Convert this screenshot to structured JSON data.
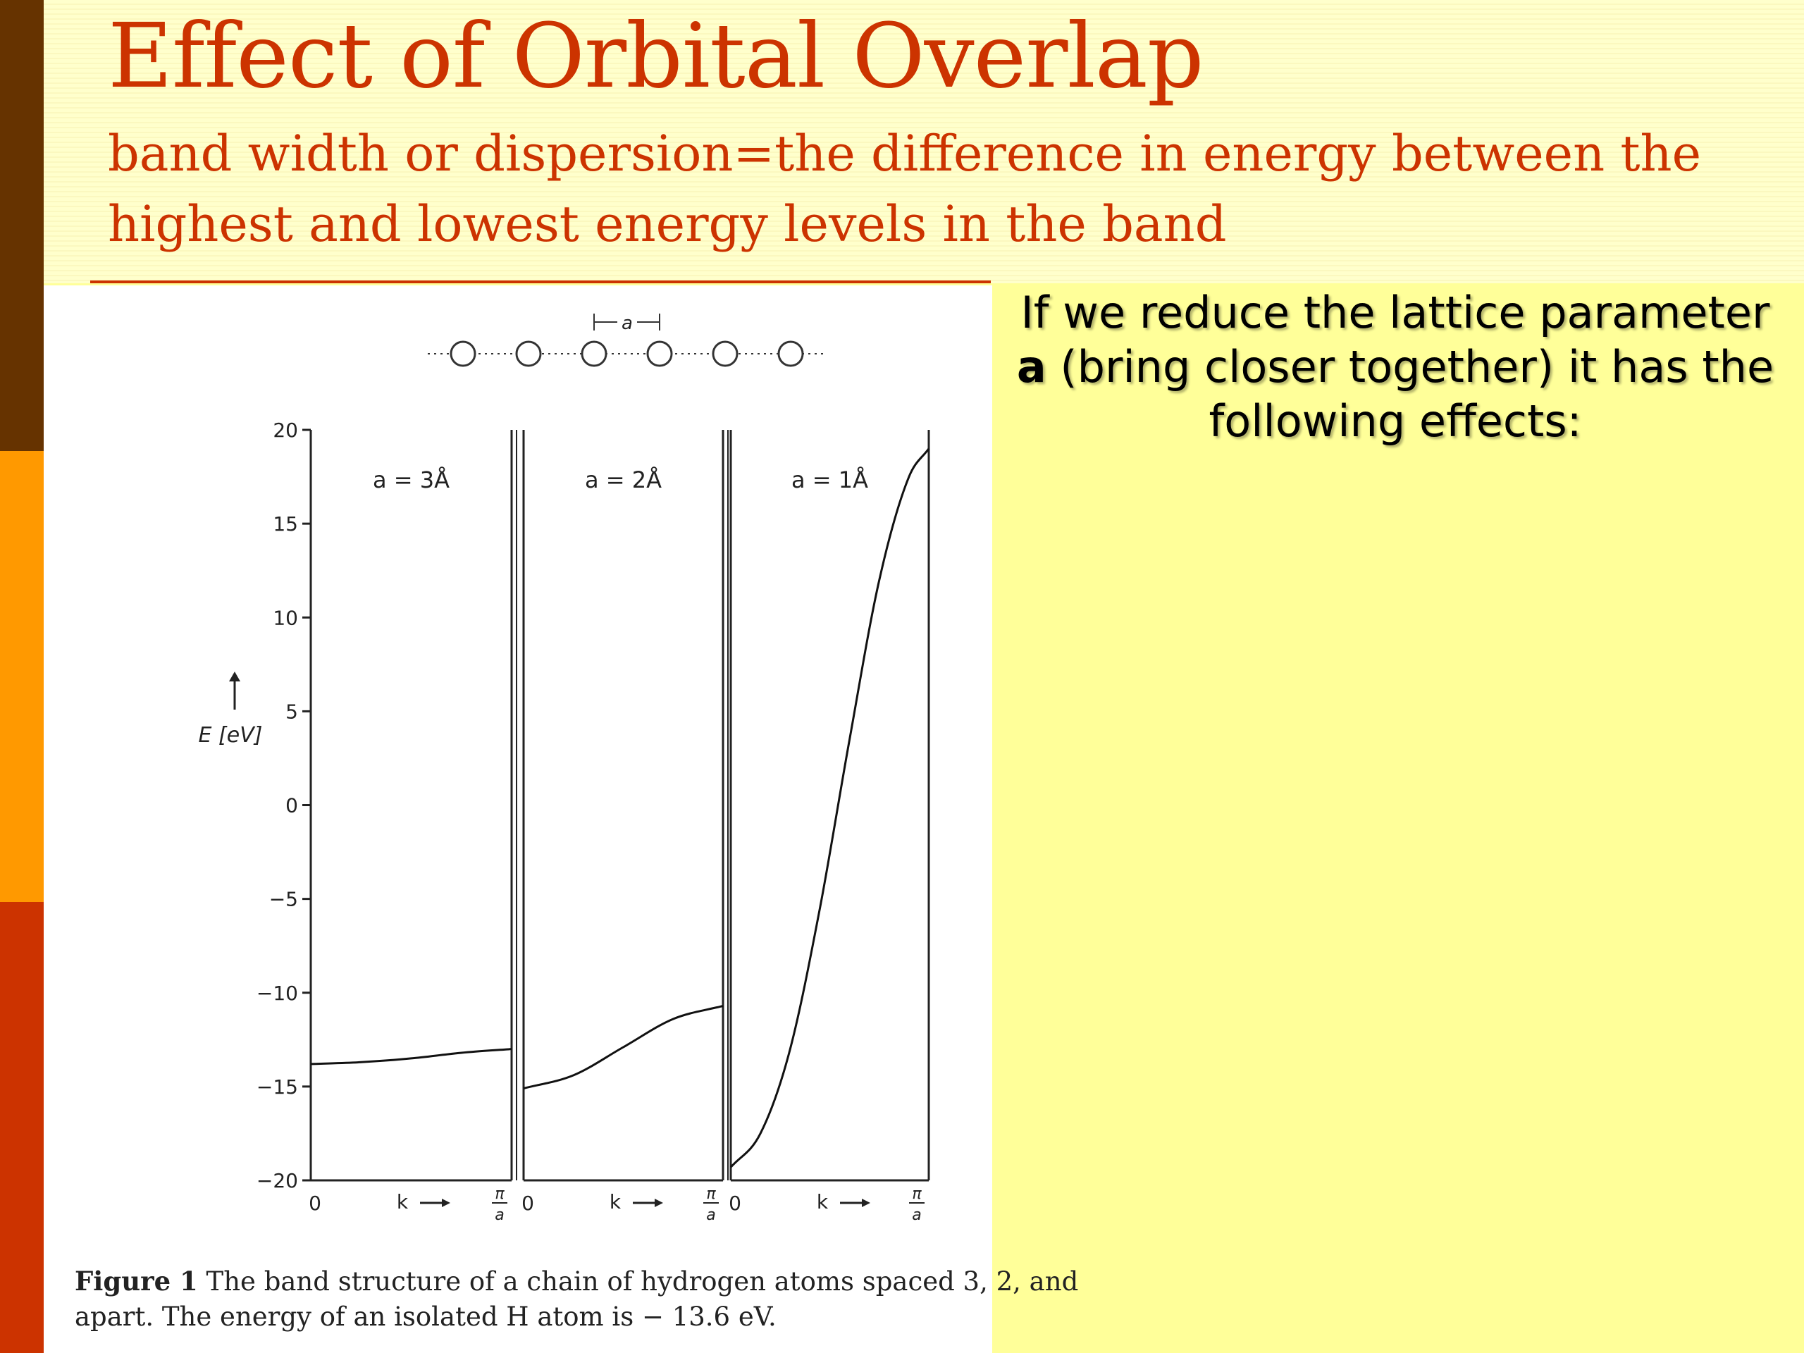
{
  "slide": {
    "title": "Effect of Orbital Overlap",
    "subtitle": "band width or dispersion=the difference in energy between the highest and lowest energy levels in the band",
    "side_text": {
      "part1": "If we reduce the lattice parameter ",
      "bold_symbol": "a",
      "part2": " (bring closer together) it has the following effects:"
    },
    "caption": {
      "lead": "Figure 1",
      "line1": " The band structure of a chain of hydrogen atoms spaced 3, 2, and",
      "line2": "apart. The energy of an isolated H atom is  − 13.6 eV."
    },
    "colors": {
      "accent": "#cc3300",
      "slide_background": "#ffff99",
      "header_background": "#ffffcc",
      "bar_top": "#663300",
      "bar_middle": "#ff9900",
      "bar_bottom": "#cc3300"
    }
  },
  "chart_data": {
    "type": "line",
    "ylabel": "E [eV]",
    "ylim": [
      -20,
      20
    ],
    "yticks": [
      20,
      15,
      10,
      5,
      0,
      -5,
      -10,
      -15,
      -20
    ],
    "chain_label": "a",
    "x_start_label": "0",
    "x_mid_label": "k",
    "x_end_label": "π/a",
    "x_end_numerator": "π",
    "x_end_denominator": "a",
    "panels": [
      {
        "label": "a = 3Å",
        "k": [
          0,
          0.25,
          0.5,
          0.75,
          1
        ],
        "E": [
          -13.8,
          -13.7,
          -13.5,
          -13.2,
          -13.0
        ]
      },
      {
        "label": "a = 2Å",
        "k": [
          0,
          0.25,
          0.5,
          0.75,
          1
        ],
        "E": [
          -15.1,
          -14.4,
          -12.9,
          -11.4,
          -10.7
        ]
      },
      {
        "label": "a = 1Å",
        "k": [
          0,
          0.15,
          0.3,
          0.45,
          0.6,
          0.75,
          0.9,
          1
        ],
        "E": [
          -19.3,
          -17.5,
          -13.0,
          -5.5,
          3.5,
          12.0,
          17.5,
          19.0
        ]
      }
    ]
  }
}
